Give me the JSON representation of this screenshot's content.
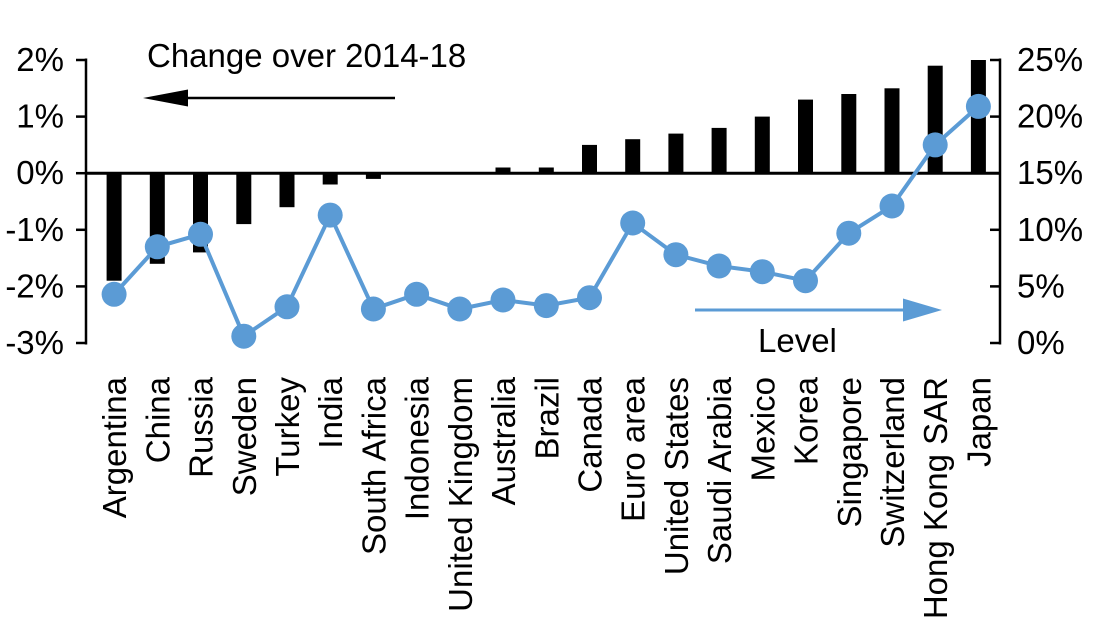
{
  "chart_data": {
    "type": "bar",
    "subtype": "combo-bar-line-dual-axis",
    "title": "Change over 2014-18",
    "grid": "off",
    "background": "#FFFFFF",
    "categories": [
      "Argentina",
      "China",
      "Russia",
      "Sweden",
      "Turkey",
      "India",
      "South Africa",
      "Indonesia",
      "United Kingdom",
      "Australia",
      "Brazil",
      "Canada",
      "Euro area",
      "United States",
      "Saudi Arabia",
      "Mexico",
      "Korea",
      "Singapore",
      "Switzerland",
      "Hong Kong SAR",
      "Japan"
    ],
    "series": [
      {
        "name": "Change over 2014-18",
        "chart_type": "bar",
        "axis": "left",
        "color": "#000000",
        "values": [
          -1.9,
          -1.6,
          -1.4,
          -0.9,
          -0.6,
          -0.2,
          -0.1,
          0,
          0,
          0.1,
          0.1,
          0.5,
          0.6,
          0.7,
          0.8,
          1.0,
          1.3,
          1.4,
          1.5,
          1.9,
          2.0
        ]
      },
      {
        "name": "Level",
        "chart_type": "line",
        "axis": "right",
        "color": "#5B9BD5",
        "marker": "circle",
        "values": [
          4.3,
          8.5,
          9.6,
          0.6,
          3.2,
          11.3,
          3.0,
          4.3,
          3.0,
          3.8,
          3.3,
          4.0,
          10.6,
          7.8,
          6.8,
          6.3,
          5.5,
          9.7,
          12.1,
          17.5,
          20.9
        ]
      }
    ],
    "left_axis": {
      "min": -3,
      "max": 2,
      "tick_values": [
        2,
        1,
        0,
        -1,
        -2,
        -3
      ],
      "tick_labels": [
        "2%",
        "1%",
        "0%",
        "-1%",
        "-2%",
        "-3%"
      ]
    },
    "right_axis": {
      "min": 0,
      "max": 25,
      "tick_values": [
        25,
        20,
        15,
        10,
        5,
        0
      ],
      "tick_labels": [
        "25%",
        "20%",
        "15%",
        "10%",
        "5%",
        "0%"
      ]
    },
    "annotations": [
      {
        "id": "bar-series-label",
        "text": "Change over 2014-18",
        "arrow": "left",
        "color": "#000000"
      },
      {
        "id": "line-series-label",
        "text": "Level",
        "arrow": "right",
        "arrow_color": "#5B9BD5",
        "color": "#000000"
      }
    ]
  }
}
